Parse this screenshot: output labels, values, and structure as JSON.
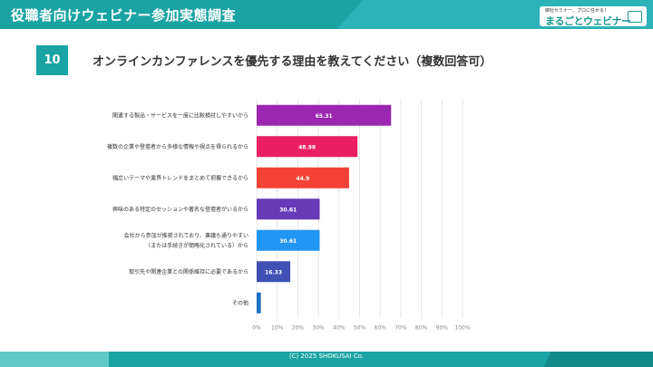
{
  "header": {
    "title": "役職者向けウェビナー参加実態調査",
    "logo_tagline": "御社セミナー、プロに任せる！",
    "logo_text": "まるごとウェビナー"
  },
  "question": {
    "number": "10",
    "text": "オンラインカンファレンスを優先する理由を教えてください（複数回答可）"
  },
  "chart_data": {
    "type": "bar",
    "orientation": "horizontal",
    "categories": [
      [
        "関連する製品・サービスを一度に比較検討しやすいから"
      ],
      [
        "複数の企業や登壇者から多様な情報や視点を得られるから"
      ],
      [
        "幅広いテーマや業界トレンドをまとめて把握できるから"
      ],
      [
        "興味のある特定のセッションや著名な登壇者がいるから"
      ],
      [
        "会社から参加が推奨されており、稟議も通りやすい",
        "（または手続きが簡略化されている）から"
      ],
      [
        "取引先や関連企業との関係維持に必要であるから"
      ],
      [
        "その他"
      ]
    ],
    "values": [
      65.31,
      48.98,
      44.9,
      30.61,
      30.61,
      16.33,
      2.04
    ],
    "data_labels": [
      "65.31",
      "48.98",
      "44.9",
      "30.61",
      "30.61",
      "16.33",
      ""
    ],
    "colors": [
      "#9c27b0",
      "#e91e63",
      "#f44336",
      "#673ab7",
      "#2196f3",
      "#3f51b5",
      "#1e6fc4"
    ],
    "xlim": [
      0,
      100
    ],
    "x_ticks": [
      "0%",
      "10%",
      "20%",
      "30%",
      "40%",
      "50%",
      "60%",
      "70%",
      "80%",
      "90%",
      "100%"
    ],
    "grid": true
  },
  "footer": {
    "copyright": "(C) 2025 SHOKUSAI Co."
  }
}
